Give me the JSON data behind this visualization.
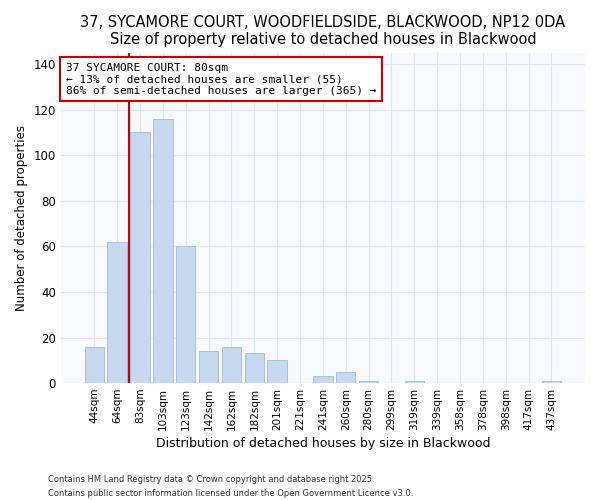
{
  "title": "37, SYCAMORE COURT, WOODFIELDSIDE, BLACKWOOD, NP12 0DA",
  "subtitle": "Size of property relative to detached houses in Blackwood",
  "xlabel": "Distribution of detached houses by size in Blackwood",
  "ylabel": "Number of detached properties",
  "bar_labels": [
    "44sqm",
    "64sqm",
    "83sqm",
    "103sqm",
    "123sqm",
    "142sqm",
    "162sqm",
    "182sqm",
    "201sqm",
    "221sqm",
    "241sqm",
    "260sqm",
    "280sqm",
    "299sqm",
    "319sqm",
    "339sqm",
    "358sqm",
    "378sqm",
    "398sqm",
    "417sqm",
    "437sqm"
  ],
  "bar_values": [
    16,
    62,
    110,
    116,
    60,
    14,
    16,
    13,
    10,
    0,
    3,
    5,
    1,
    0,
    1,
    0,
    0,
    0,
    0,
    0,
    1
  ],
  "bar_color": "#c5d8f0",
  "bar_edge_color": "#a0bcd8",
  "vline_color": "#cc0000",
  "ylim": [
    0,
    145
  ],
  "yticks": [
    0,
    20,
    40,
    60,
    80,
    100,
    120,
    140
  ],
  "annotation_title": "37 SYCAMORE COURT: 80sqm",
  "annotation_line1": "← 13% of detached houses are smaller (55)",
  "annotation_line2": "86% of semi-detached houses are larger (365) →",
  "footer1": "Contains HM Land Registry data © Crown copyright and database right 2025.",
  "footer2": "Contains public sector information licensed under the Open Government Licence v3.0.",
  "background_color": "#ffffff",
  "plot_bg_color": "#f7f9ff",
  "grid_color": "#e0e6f0",
  "title_fontsize": 10.5,
  "subtitle_fontsize": 9.5
}
